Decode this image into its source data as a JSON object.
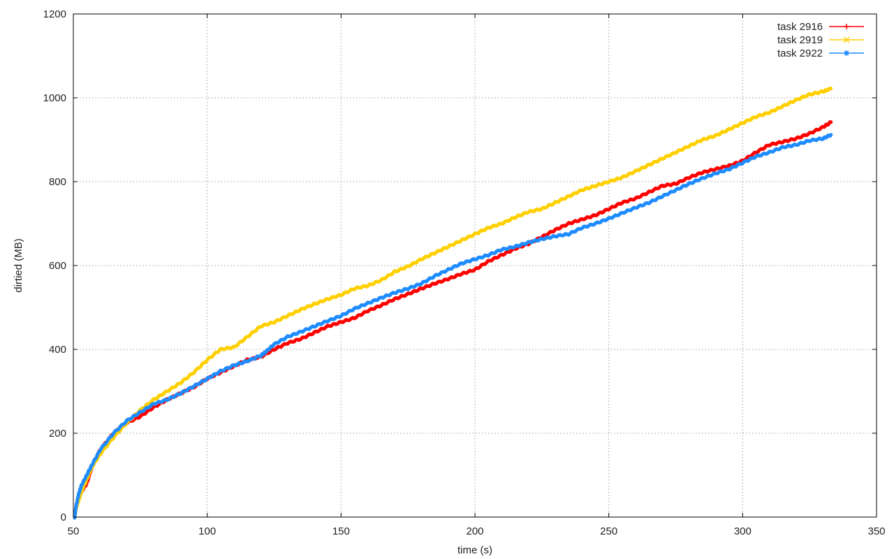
{
  "chart_data": {
    "type": "line",
    "xlabel": "time (s)",
    "ylabel": "dirtied (MB)",
    "xlim": [
      50,
      350
    ],
    "ylim": [
      0,
      1200
    ],
    "xticks": [
      50,
      100,
      150,
      200,
      250,
      300,
      350
    ],
    "yticks": [
      0,
      200,
      400,
      600,
      800,
      1000,
      1200
    ],
    "grid": true,
    "legend_position": "top-right",
    "series": [
      {
        "name": "task 2916",
        "color": "#ff0000",
        "marker": "plus",
        "points": [
          [
            50.5,
            0
          ],
          [
            51,
            25
          ],
          [
            52,
            50
          ],
          [
            53,
            60
          ],
          [
            55,
            80
          ],
          [
            57,
            120
          ],
          [
            60,
            160
          ],
          [
            65,
            200
          ],
          [
            70,
            225
          ],
          [
            75,
            240
          ],
          [
            80,
            262
          ],
          [
            85,
            280
          ],
          [
            90,
            295
          ],
          [
            95,
            310
          ],
          [
            100,
            330
          ],
          [
            105,
            345
          ],
          [
            110,
            360
          ],
          [
            115,
            375
          ],
          [
            120,
            382
          ],
          [
            125,
            400
          ],
          [
            130,
            415
          ],
          [
            135,
            425
          ],
          [
            140,
            440
          ],
          [
            145,
            455
          ],
          [
            150,
            465
          ],
          [
            155,
            475
          ],
          [
            160,
            492
          ],
          [
            165,
            505
          ],
          [
            170,
            520
          ],
          [
            175,
            532
          ],
          [
            180,
            545
          ],
          [
            185,
            557
          ],
          [
            190,
            568
          ],
          [
            195,
            580
          ],
          [
            200,
            590
          ],
          [
            205,
            610
          ],
          [
            210,
            625
          ],
          [
            215,
            640
          ],
          [
            220,
            652
          ],
          [
            225,
            668
          ],
          [
            230,
            685
          ],
          [
            235,
            700
          ],
          [
            240,
            710
          ],
          [
            245,
            720
          ],
          [
            250,
            735
          ],
          [
            255,
            750
          ],
          [
            260,
            760
          ],
          [
            265,
            775
          ],
          [
            270,
            790
          ],
          [
            275,
            795
          ],
          [
            280,
            810
          ],
          [
            285,
            822
          ],
          [
            290,
            830
          ],
          [
            295,
            838
          ],
          [
            300,
            850
          ],
          [
            305,
            870
          ],
          [
            310,
            888
          ],
          [
            315,
            895
          ],
          [
            320,
            903
          ],
          [
            325,
            915
          ],
          [
            330,
            930
          ],
          [
            333,
            942
          ]
        ]
      },
      {
        "name": "task 2919",
        "color": "#ffd000",
        "marker": "cross",
        "points": [
          [
            50.5,
            0
          ],
          [
            51,
            20
          ],
          [
            52,
            40
          ],
          [
            53,
            60
          ],
          [
            55,
            90
          ],
          [
            57,
            120
          ],
          [
            60,
            150
          ],
          [
            65,
            190
          ],
          [
            70,
            225
          ],
          [
            75,
            255
          ],
          [
            80,
            280
          ],
          [
            85,
            300
          ],
          [
            90,
            320
          ],
          [
            95,
            345
          ],
          [
            100,
            375
          ],
          [
            105,
            400
          ],
          [
            110,
            405
          ],
          [
            115,
            430
          ],
          [
            120,
            455
          ],
          [
            125,
            465
          ],
          [
            130,
            480
          ],
          [
            135,
            495
          ],
          [
            140,
            508
          ],
          [
            145,
            520
          ],
          [
            150,
            530
          ],
          [
            155,
            545
          ],
          [
            160,
            552
          ],
          [
            165,
            565
          ],
          [
            170,
            585
          ],
          [
            175,
            598
          ],
          [
            180,
            615
          ],
          [
            185,
            630
          ],
          [
            190,
            645
          ],
          [
            195,
            660
          ],
          [
            200,
            675
          ],
          [
            205,
            690
          ],
          [
            210,
            700
          ],
          [
            215,
            715
          ],
          [
            220,
            728
          ],
          [
            225,
            735
          ],
          [
            230,
            750
          ],
          [
            235,
            765
          ],
          [
            240,
            780
          ],
          [
            245,
            790
          ],
          [
            250,
            800
          ],
          [
            255,
            810
          ],
          [
            260,
            825
          ],
          [
            265,
            840
          ],
          [
            270,
            855
          ],
          [
            275,
            870
          ],
          [
            280,
            885
          ],
          [
            285,
            900
          ],
          [
            290,
            910
          ],
          [
            295,
            925
          ],
          [
            300,
            940
          ],
          [
            305,
            955
          ],
          [
            310,
            965
          ],
          [
            315,
            980
          ],
          [
            320,
            995
          ],
          [
            325,
            1008
          ],
          [
            330,
            1015
          ],
          [
            333,
            1022
          ]
        ]
      },
      {
        "name": "task 2922",
        "color": "#1e8cff",
        "marker": "star",
        "points": [
          [
            50.5,
            0
          ],
          [
            51,
            25
          ],
          [
            52,
            55
          ],
          [
            53,
            75
          ],
          [
            55,
            100
          ],
          [
            57,
            125
          ],
          [
            60,
            160
          ],
          [
            65,
            200
          ],
          [
            70,
            230
          ],
          [
            75,
            250
          ],
          [
            80,
            270
          ],
          [
            85,
            280
          ],
          [
            90,
            295
          ],
          [
            95,
            312
          ],
          [
            100,
            330
          ],
          [
            105,
            348
          ],
          [
            110,
            362
          ],
          [
            115,
            372
          ],
          [
            120,
            385
          ],
          [
            122,
            395
          ],
          [
            125,
            412
          ],
          [
            130,
            430
          ],
          [
            135,
            442
          ],
          [
            140,
            455
          ],
          [
            145,
            468
          ],
          [
            150,
            480
          ],
          [
            155,
            497
          ],
          [
            160,
            510
          ],
          [
            165,
            523
          ],
          [
            170,
            535
          ],
          [
            175,
            545
          ],
          [
            180,
            557
          ],
          [
            185,
            575
          ],
          [
            190,
            590
          ],
          [
            195,
            605
          ],
          [
            200,
            615
          ],
          [
            205,
            625
          ],
          [
            210,
            638
          ],
          [
            215,
            645
          ],
          [
            220,
            655
          ],
          [
            225,
            663
          ],
          [
            230,
            670
          ],
          [
            235,
            675
          ],
          [
            240,
            690
          ],
          [
            245,
            700
          ],
          [
            250,
            712
          ],
          [
            255,
            725
          ],
          [
            260,
            738
          ],
          [
            265,
            750
          ],
          [
            270,
            765
          ],
          [
            275,
            780
          ],
          [
            280,
            795
          ],
          [
            285,
            808
          ],
          [
            290,
            820
          ],
          [
            295,
            830
          ],
          [
            300,
            845
          ],
          [
            305,
            860
          ],
          [
            310,
            870
          ],
          [
            315,
            882
          ],
          [
            320,
            888
          ],
          [
            325,
            898
          ],
          [
            330,
            903
          ],
          [
            333,
            912
          ]
        ]
      }
    ]
  }
}
